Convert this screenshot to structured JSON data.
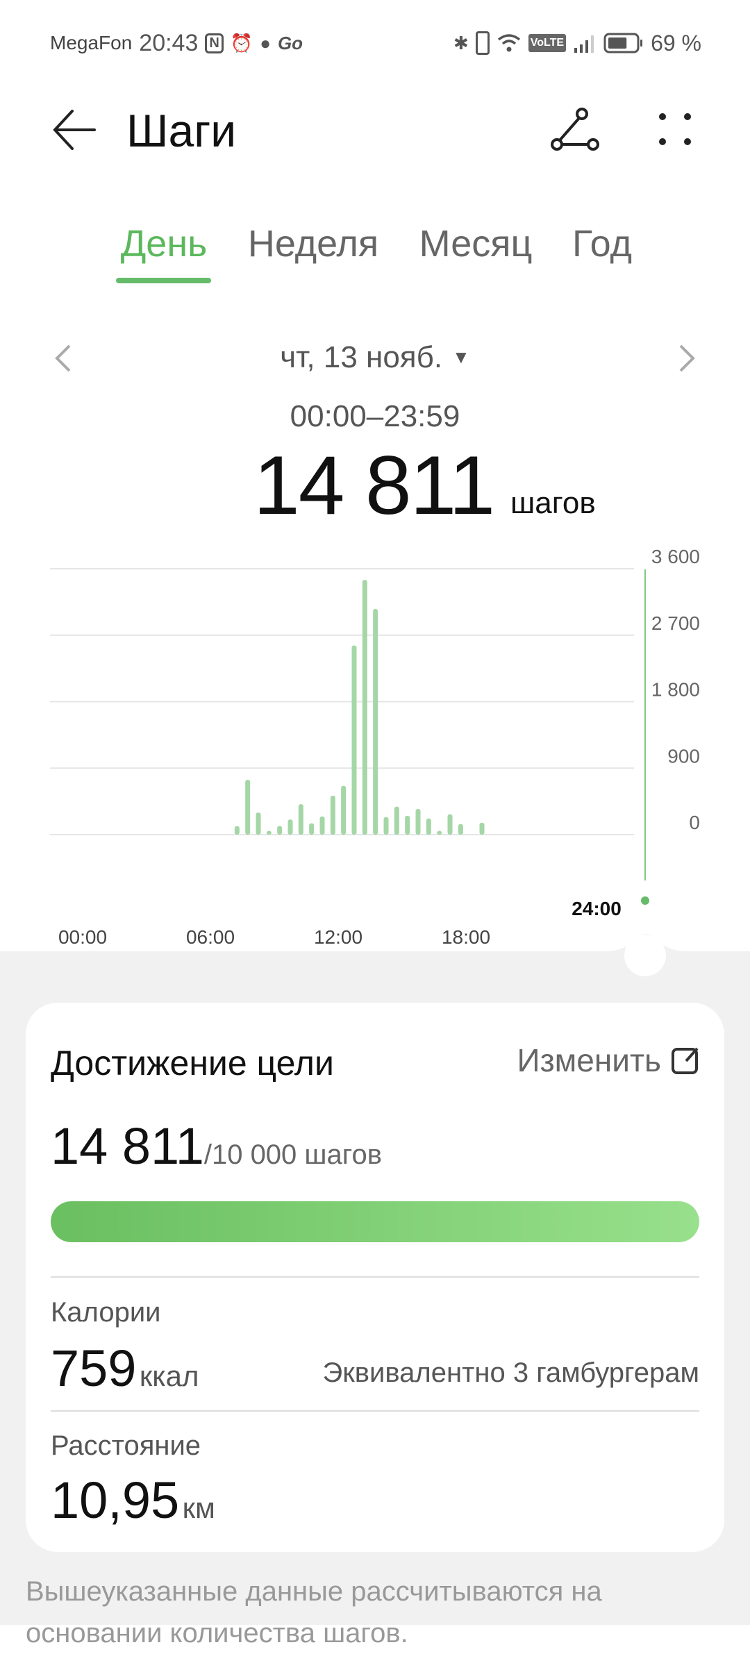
{
  "status_bar": {
    "carrier": "MegaFon",
    "time": "20:43",
    "left_icons": [
      "nfc-icon",
      "alarm-icon",
      "chat-icon",
      "go-icon"
    ],
    "right_icons": [
      "bluetooth-icon",
      "vibrate-icon",
      "wifi-icon",
      "volte-icon",
      "signal-icon",
      "battery-icon"
    ],
    "volte": "VoLTE",
    "battery": "69 %",
    "battery_level": 0.69
  },
  "header": {
    "title": "Шаги",
    "back_icon": "arrow-left-icon",
    "share_icon": "share-icon",
    "more_icon": "more-icon"
  },
  "tabs": [
    {
      "label": "День",
      "active": true
    },
    {
      "label": "Неделя"
    },
    {
      "label": "Месяц"
    },
    {
      "label": "Год"
    }
  ],
  "date_nav": {
    "date": "чт, 13 нояб.",
    "range": "00:00–23:59"
  },
  "summary": {
    "steps": "14 811",
    "unit": "шагов"
  },
  "accent": "#66bb6a",
  "chart_data": {
    "type": "bar",
    "x_unit": "time of day (30-min slots, slot start)",
    "x": [
      "07:00",
      "07:30",
      "08:00",
      "08:30",
      "09:00",
      "09:30",
      "10:00",
      "10:30",
      "11:00",
      "11:30",
      "12:00",
      "12:30",
      "13:00",
      "13:30",
      "14:00",
      "14:30",
      "15:00",
      "15:30",
      "16:00",
      "16:30",
      "17:00",
      "17:30",
      "18:00",
      "18:30"
    ],
    "values": [
      115,
      742,
      298,
      50,
      118,
      204,
      412,
      154,
      247,
      527,
      660,
      2560,
      3449,
      3055,
      237,
      380,
      255,
      348,
      219,
      50,
      276,
      143,
      0,
      161
    ],
    "ylim": [
      0,
      3600
    ],
    "y_ticks": [
      "3 600",
      "2 700",
      "1 800",
      "900",
      "0"
    ],
    "y_tick_values": [
      3600,
      2700,
      1800,
      900,
      0
    ],
    "x_ticks": [
      "00:00",
      "06:00",
      "12:00",
      "18:00"
    ],
    "x_tick_hours": [
      0,
      6,
      12,
      18
    ],
    "cursor_label": "24:00",
    "grid": true,
    "bar_color": "#a5d6a7"
  },
  "goal": {
    "title": "Достижение цели",
    "edit": "Изменить",
    "value": "14 811",
    "target": "/10 000 шагов",
    "progress": 1.0
  },
  "calories": {
    "label": "Калории",
    "value": "759",
    "unit": "ккал",
    "equivalent": "Эквивалентно 3 гамбургерам"
  },
  "distance": {
    "label": "Расстояние",
    "value": "10,95",
    "unit": "км"
  },
  "footer": {
    "note_line1": "Вышеуказанные данные рассчитываются на",
    "note_line2": "основании количества шагов."
  }
}
